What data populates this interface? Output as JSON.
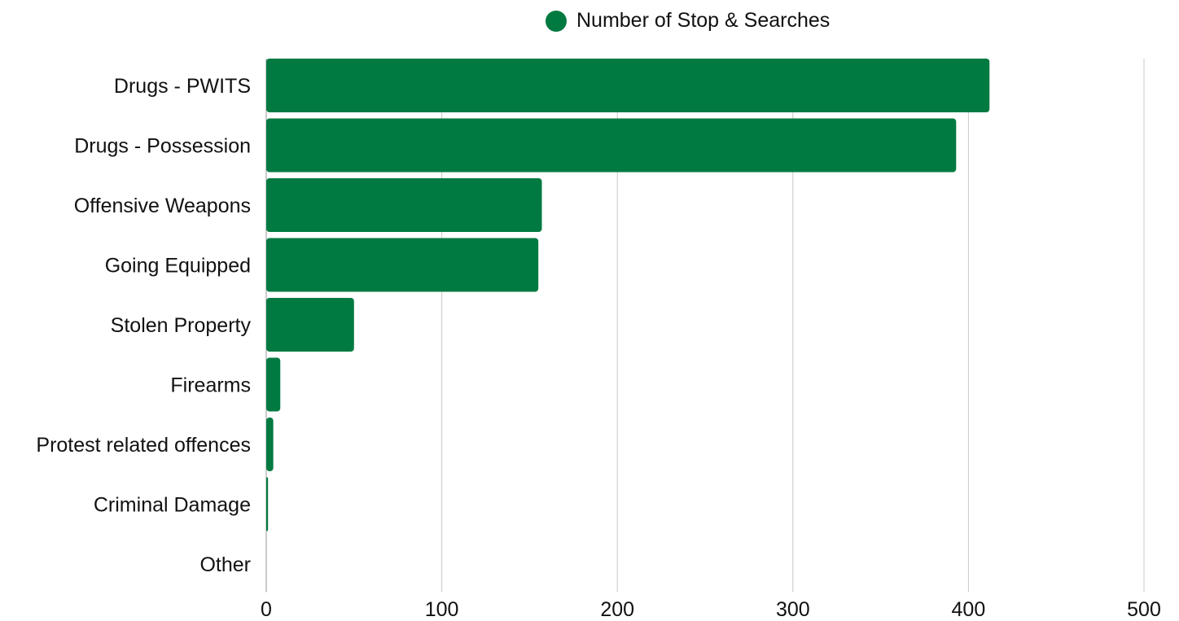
{
  "chart_data": {
    "type": "bar",
    "orientation": "horizontal",
    "title": "",
    "xlabel": "",
    "ylabel": "",
    "categories": [
      "Drugs - PWITS",
      "Drugs - Possession",
      "Offensive Weapons",
      "Going Equipped",
      "Stolen Property",
      "Firearms",
      "Protest related offences",
      "Criminal Damage",
      "Other"
    ],
    "series": [
      {
        "name": "Number of Stop & Searches",
        "color": "#007a41",
        "values": [
          412,
          393,
          157,
          155,
          50,
          8,
          4,
          1,
          0
        ]
      }
    ],
    "xlim": [
      0,
      500
    ],
    "xticks": [
      0,
      100,
      200,
      300,
      400,
      500
    ],
    "grid": true,
    "legend_position": "top-center"
  }
}
